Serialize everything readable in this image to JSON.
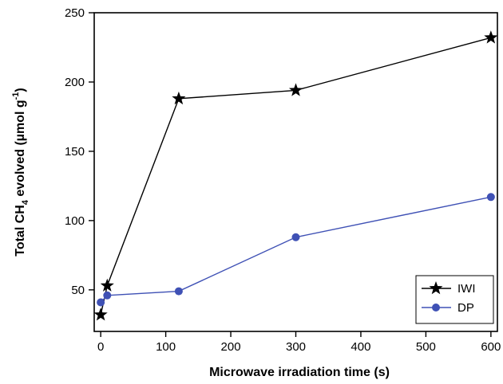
{
  "chart_data": {
    "type": "line",
    "xlabel": "Microwave irradiation time (s)",
    "ylabel": {
      "before": "Total CH",
      "subscript": "4",
      "middle": " evolved (µmol g",
      "superscript": "-1",
      "after": ")"
    },
    "xlim": [
      -10,
      610
    ],
    "ylim": [
      20,
      250
    ],
    "xticks": [
      0,
      100,
      200,
      300,
      400,
      500,
      600
    ],
    "yticks": [
      50,
      100,
      150,
      200,
      250
    ],
    "grid": false,
    "legend_position": "bottom-right",
    "series": [
      {
        "name": "IWI",
        "marker": "star",
        "color": "#000000",
        "x": [
          0,
          10,
          120,
          300,
          600
        ],
        "y": [
          32,
          53,
          188,
          194,
          232
        ]
      },
      {
        "name": "DP",
        "marker": "circle",
        "color": "#3f51b5",
        "x": [
          0,
          10,
          120,
          300,
          600
        ],
        "y": [
          41,
          46,
          49,
          88,
          117
        ]
      }
    ]
  }
}
